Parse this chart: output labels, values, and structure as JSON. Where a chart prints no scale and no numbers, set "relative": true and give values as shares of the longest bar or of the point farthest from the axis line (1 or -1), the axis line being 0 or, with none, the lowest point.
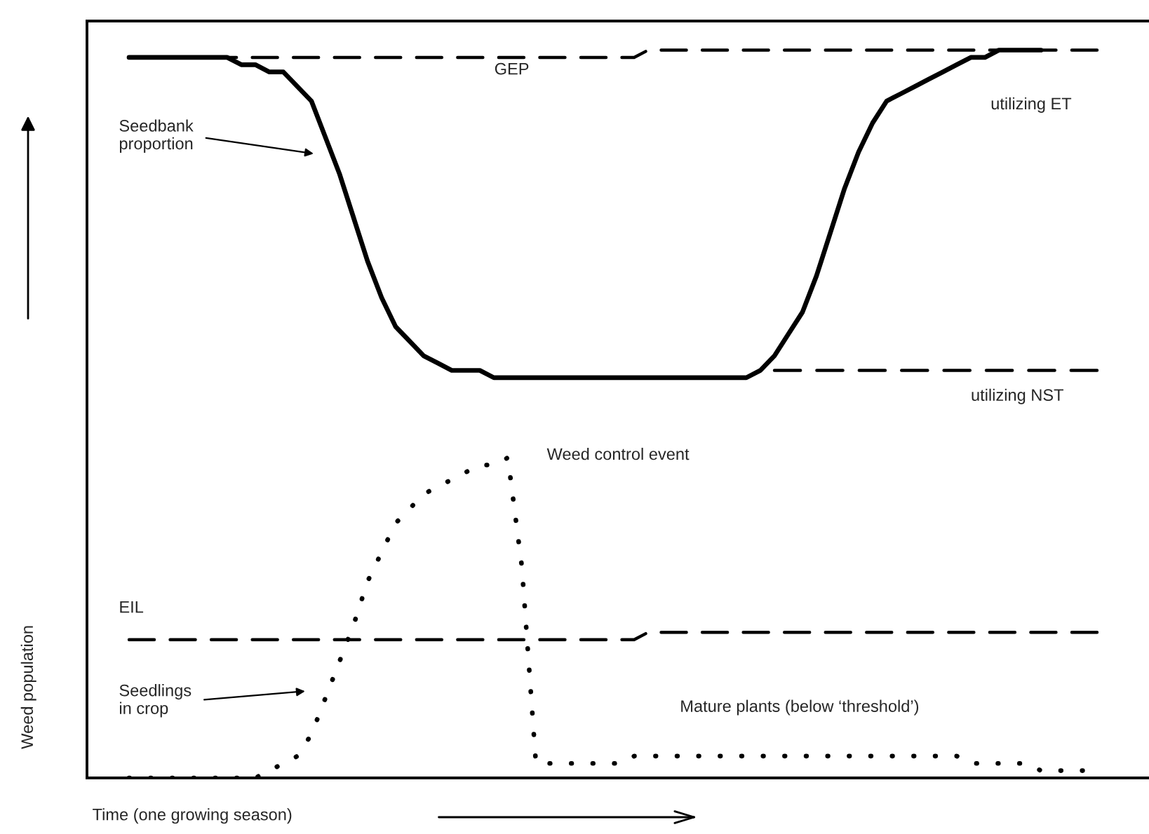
{
  "chart_data": {
    "type": "line",
    "relative": true,
    "xlabel": "Time (one growing season)",
    "ylabel": "Weed population",
    "categories": [
      null,
      null,
      null,
      null,
      null,
      null,
      null,
      null,
      null,
      null,
      null,
      null,
      null,
      null,
      null,
      null,
      null,
      null,
      null,
      null,
      null,
      null,
      null,
      null,
      null,
      null,
      null,
      null,
      null,
      null,
      null,
      null,
      null,
      null,
      null,
      null,
      null,
      null,
      null,
      null,
      null,
      null,
      null,
      null,
      null,
      null,
      null,
      null,
      null,
      null,
      null,
      null,
      null,
      null,
      null,
      null,
      null,
      null,
      null,
      null,
      null,
      null,
      null,
      null,
      null,
      null,
      null,
      null,
      null,
      null,
      null,
      null,
      null,
      null,
      null,
      null
    ],
    "series": [
      {
        "color": "#000000",
        "line_style": "solid",
        "values": [
          null,
          null,
          null,
          0.99,
          0.99,
          0.99,
          0.99,
          0.99,
          0.99,
          0.99,
          0.99,
          0.98,
          0.98,
          0.97,
          0.97,
          0.95,
          0.93,
          0.88,
          0.83,
          0.77,
          0.71,
          0.66,
          0.62,
          0.6,
          0.58,
          0.57,
          0.56,
          0.56,
          0.56,
          0.55,
          0.55,
          0.55,
          0.55,
          0.55,
          0.55,
          0.55,
          0.55,
          0.55,
          0.55,
          0.55,
          0.55,
          0.55,
          0.55,
          0.55,
          0.55,
          0.55,
          0.55,
          0.55,
          0.56,
          0.58,
          0.61,
          0.64,
          0.69,
          0.75,
          0.81,
          0.86,
          0.9,
          0.93,
          0.94,
          0.95,
          0.96,
          0.97,
          0.98,
          0.99,
          0.99,
          1.0,
          1.0,
          1.0,
          1.0,
          null,
          null,
          null,
          null,
          null,
          null,
          null
        ]
      },
      {
        "color": "#000000",
        "line_style": "dashed",
        "values": [
          null,
          null,
          null,
          0.99,
          0.99,
          0.99,
          0.99,
          0.99,
          0.99,
          0.99,
          0.99,
          0.99,
          0.99,
          0.99,
          0.99,
          0.99,
          0.99,
          0.99,
          0.99,
          0.99,
          0.99,
          0.99,
          0.99,
          0.99,
          0.99,
          0.99,
          0.99,
          0.99,
          0.99,
          0.99,
          0.99,
          0.99,
          0.99,
          0.99,
          0.99,
          0.99,
          0.99,
          0.99,
          0.99,
          0.99,
          1.0,
          1.0,
          1.0,
          1.0,
          1.0,
          1.0,
          1.0,
          1.0,
          1.0,
          1.0,
          1.0,
          1.0,
          1.0,
          1.0,
          1.0,
          1.0,
          1.0,
          1.0,
          1.0,
          1.0,
          1.0,
          1.0,
          1.0,
          1.0,
          1.0,
          1.0,
          1.0,
          1.0,
          1.0,
          1.0,
          1.0,
          1.0,
          1.0,
          null,
          null,
          null
        ]
      },
      {
        "color": "#000000",
        "line_style": "dashed",
        "values": [
          null,
          null,
          null,
          null,
          null,
          null,
          null,
          null,
          null,
          null,
          null,
          null,
          null,
          null,
          null,
          null,
          null,
          null,
          null,
          null,
          null,
          null,
          null,
          null,
          null,
          null,
          null,
          null,
          null,
          null,
          null,
          null,
          null,
          null,
          null,
          null,
          null,
          null,
          null,
          null,
          null,
          null,
          null,
          null,
          null,
          null,
          null,
          null,
          null,
          0.56,
          0.56,
          0.56,
          0.56,
          0.56,
          0.56,
          0.56,
          0.56,
          0.56,
          0.56,
          0.56,
          0.56,
          0.56,
          0.56,
          0.56,
          0.56,
          0.56,
          0.56,
          0.56,
          0.56,
          0.56,
          0.56,
          0.56,
          0.56,
          null,
          null,
          null
        ]
      },
      {
        "color": "#000000",
        "line_style": "dashed",
        "values": [
          null,
          null,
          null,
          0.19,
          0.19,
          0.19,
          0.19,
          0.19,
          0.19,
          0.19,
          0.19,
          0.19,
          0.19,
          0.19,
          0.19,
          0.19,
          0.19,
          0.19,
          0.19,
          0.19,
          0.19,
          0.19,
          0.19,
          0.19,
          0.19,
          0.19,
          0.19,
          0.19,
          0.19,
          0.19,
          0.19,
          0.19,
          0.19,
          0.19,
          0.19,
          0.19,
          0.19,
          0.19,
          0.19,
          0.19,
          0.2,
          0.2,
          0.2,
          0.2,
          0.2,
          0.2,
          0.2,
          0.2,
          0.2,
          0.2,
          0.2,
          0.2,
          0.2,
          0.2,
          0.2,
          0.2,
          0.2,
          0.2,
          0.2,
          0.2,
          0.2,
          0.2,
          0.2,
          0.2,
          0.2,
          0.2,
          0.2,
          0.2,
          0.2,
          0.2,
          0.2,
          0.2,
          0.2,
          null,
          null,
          null
        ]
      },
      {
        "color": "#000000",
        "line_style": "dotted",
        "values": [
          null,
          null,
          null,
          0,
          0,
          0,
          0,
          0,
          0,
          0,
          0,
          0,
          0,
          0.01,
          0.02,
          0.03,
          0.06,
          0.11,
          0.16,
          0.21,
          0.27,
          0.31,
          0.35,
          0.37,
          0.39,
          0.4,
          0.41,
          0.42,
          0.43,
          0.43,
          0.44,
          0.29,
          0.02,
          0.02,
          0.02,
          0.02,
          0.02,
          0.02,
          0.02,
          0.03,
          0.03,
          0.03,
          0.03,
          0.03,
          0.03,
          0.03,
          0.03,
          0.03,
          0.03,
          0.03,
          0.03,
          0.03,
          0.03,
          0.03,
          0.03,
          0.03,
          0.03,
          0.03,
          0.03,
          0.03,
          0.03,
          0.03,
          0.03,
          0.02,
          0.02,
          0.02,
          0.02,
          0.02,
          0.01,
          0.01,
          0.01,
          0.01,
          0.01,
          null,
          null,
          null
        ]
      }
    ],
    "annotations": [
      "GEP",
      "Seedbank\nproportion",
      "utilizing ET",
      "utilizing NST",
      "Weed control event",
      "EIL",
      "Seedlings\nin crop",
      "Mature plants (below ‘threshold’)"
    ]
  }
}
